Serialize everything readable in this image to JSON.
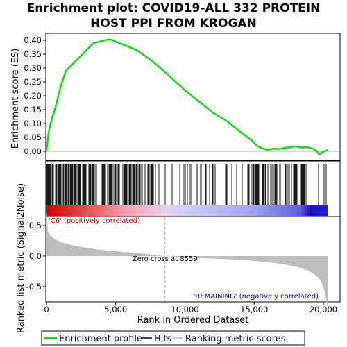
{
  "chart_data": {
    "type": "line",
    "title_line1": "Enrichment plot: COVID19-ALL 332 PROTEIN",
    "title_line2": "HOST PPI FROM KROGAN",
    "ylabel_top": "Enrichment score (ES)",
    "ylabel_bottom": "Ranked list metric (Signal2Noise)",
    "xlabel": "Rank in Ordered Dataset",
    "x_ticks": [
      "0",
      "5,000",
      "10,000",
      "15,000",
      "20,000"
    ],
    "x_tick_values": [
      0,
      5000,
      10000,
      15000,
      20000
    ],
    "xlim": [
      0,
      20500
    ],
    "top_y_ticks": [
      "0.00",
      "0.05",
      "0.10",
      "0.15",
      "0.20",
      "0.25",
      "0.30",
      "0.35",
      "0.40"
    ],
    "top_y_tick_values": [
      0,
      0.05,
      0.1,
      0.15,
      0.2,
      0.25,
      0.3,
      0.35,
      0.4
    ],
    "top_ylim": [
      -0.02,
      0.42
    ],
    "bottom_y_ticks": [
      "0.5",
      "0.0",
      "-0.5"
    ],
    "bottom_y_tick_values": [
      0.5,
      0.0,
      -0.5
    ],
    "bottom_ylim": [
      -0.9,
      0.75
    ],
    "es_profile": {
      "x": [
        0,
        100,
        200,
        400,
        600,
        800,
        1000,
        1200,
        1400,
        1600,
        1800,
        2000,
        2200,
        2400,
        2600,
        2800,
        3000,
        3200,
        3400,
        3600,
        3800,
        4000,
        4200,
        4400,
        4600,
        4800,
        5000,
        5500,
        6000,
        6500,
        7000,
        7500,
        8000,
        8559,
        9000,
        10000,
        11000,
        12000,
        13000,
        14000,
        14800,
        15200,
        15600,
        16000,
        16400,
        16800,
        17200,
        17600,
        18000,
        18400,
        18800,
        19200,
        19500,
        19700,
        19900,
        20100,
        20300
      ],
      "y": [
        0.0,
        0.05,
        0.08,
        0.12,
        0.15,
        0.19,
        0.23,
        0.26,
        0.29,
        0.3,
        0.31,
        0.32,
        0.33,
        0.34,
        0.35,
        0.36,
        0.37,
        0.38,
        0.39,
        0.392,
        0.395,
        0.398,
        0.4,
        0.402,
        0.403,
        0.4,
        0.395,
        0.385,
        0.375,
        0.365,
        0.348,
        0.33,
        0.31,
        0.285,
        0.265,
        0.22,
        0.18,
        0.14,
        0.11,
        0.07,
        0.04,
        0.02,
        0.01,
        0.005,
        0.01,
        0.008,
        0.012,
        0.015,
        0.018,
        0.014,
        0.016,
        0.01,
        0.002,
        -0.012,
        -0.004,
        0.0,
        0.005
      ]
    },
    "metric_profile": {
      "x": [
        0,
        100,
        300,
        600,
        1000,
        2000,
        3000,
        4000,
        5000,
        6000,
        7000,
        8000,
        8559,
        10000,
        12000,
        14000,
        15000,
        16000,
        17000,
        18000,
        18500,
        19000,
        19500,
        19800,
        20000,
        20100,
        20200,
        20300
      ],
      "y": [
        0.75,
        0.4,
        0.33,
        0.28,
        0.23,
        0.17,
        0.13,
        0.1,
        0.08,
        0.06,
        0.04,
        0.015,
        0.0,
        -0.02,
        -0.04,
        -0.06,
        -0.08,
        -0.1,
        -0.13,
        -0.17,
        -0.2,
        -0.25,
        -0.32,
        -0.4,
        -0.52,
        -0.6,
        -0.72,
        -0.85
      ]
    },
    "zero_cross_label": "Zero cross at 8559",
    "zero_cross_x": 8559,
    "pos_label": "'C6' (positively correlated)",
    "neg_label": "'REMAINING' (negatively correlated)",
    "legend": [
      "Enrichment profile",
      "Hits",
      "Ranking metric scores"
    ],
    "colors": {
      "es_line": "#00e000",
      "pos_label": "#cc0000",
      "neg_label": "#0000cc",
      "metric_fill": "#bdbdbd",
      "hit": "#000000",
      "bar_red": "#d40000",
      "bar_blue": "#2020c8"
    }
  }
}
